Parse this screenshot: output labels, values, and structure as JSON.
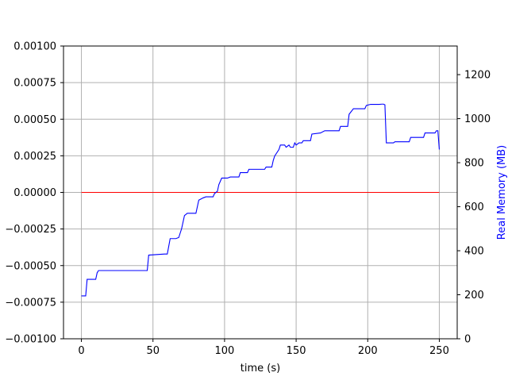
{
  "chart_data": {
    "type": "line",
    "title": "",
    "xlabel": "time (s)",
    "ylabel": "",
    "y2label": "Real Memory (MB)",
    "xlim": [
      -12.5,
      262.5
    ],
    "ylim": [
      -0.001,
      0.001
    ],
    "y2lim": [
      0,
      1330
    ],
    "x_ticks": [
      0,
      50,
      100,
      150,
      200,
      250
    ],
    "x_tick_labels": [
      "0",
      "50",
      "100",
      "150",
      "200",
      "250"
    ],
    "y_ticks": [
      -0.001,
      -0.00075,
      -0.0005,
      -0.00025,
      0,
      0.00025,
      0.0005,
      0.00075,
      0.001
    ],
    "y_tick_labels": [
      "−0.00100",
      "−0.00075",
      "−0.00050",
      "−0.00025",
      "0.00000",
      "0.00025",
      "0.00050",
      "0.00075",
      "0.00100"
    ],
    "y2_ticks": [
      0,
      200,
      400,
      600,
      800,
      1000,
      1200
    ],
    "y2_tick_labels": [
      "0",
      "200",
      "400",
      "600",
      "800",
      "1000",
      "1200"
    ],
    "grid": true,
    "legend": "none",
    "colors": {
      "baseline": "#ff0000",
      "memory": "#0000ff",
      "grid": "#b0b0b0",
      "y2label": "#0000ff"
    },
    "series": [
      {
        "axis": "left",
        "color": "#ff0000",
        "points": [
          [
            0,
            0
          ],
          [
            250,
            0
          ]
        ]
      },
      {
        "axis": "right",
        "color": "#0000ff",
        "points": [
          [
            0,
            195
          ],
          [
            3,
            195
          ],
          [
            4,
            270
          ],
          [
            10,
            270
          ],
          [
            11,
            300
          ],
          [
            12,
            310
          ],
          [
            46,
            310
          ],
          [
            47,
            380
          ],
          [
            58,
            385
          ],
          [
            60,
            385
          ],
          [
            61,
            420
          ],
          [
            62,
            455
          ],
          [
            66,
            455
          ],
          [
            68,
            460
          ],
          [
            70,
            500
          ],
          [
            72,
            560
          ],
          [
            74,
            570
          ],
          [
            80,
            570
          ],
          [
            82,
            630
          ],
          [
            85,
            640
          ],
          [
            87,
            645
          ],
          [
            92,
            645
          ],
          [
            93,
            660
          ],
          [
            95,
            670
          ],
          [
            96,
            700
          ],
          [
            98,
            730
          ],
          [
            102,
            730
          ],
          [
            104,
            735
          ],
          [
            110,
            735
          ],
          [
            111,
            755
          ],
          [
            116,
            755
          ],
          [
            117,
            770
          ],
          [
            128,
            770
          ],
          [
            129,
            780
          ],
          [
            133,
            780
          ],
          [
            134,
            810
          ],
          [
            135,
            830
          ],
          [
            138,
            860
          ],
          [
            139,
            880
          ],
          [
            142,
            880
          ],
          [
            143,
            870
          ],
          [
            145,
            880
          ],
          [
            146,
            870
          ],
          [
            148,
            870
          ],
          [
            149,
            890
          ],
          [
            150,
            880
          ],
          [
            152,
            890
          ],
          [
            154,
            890
          ],
          [
            155,
            900
          ],
          [
            160,
            900
          ],
          [
            161,
            930
          ],
          [
            167,
            935
          ],
          [
            170,
            945
          ],
          [
            180,
            945
          ],
          [
            181,
            965
          ],
          [
            186,
            965
          ],
          [
            187,
            1020
          ],
          [
            190,
            1045
          ],
          [
            198,
            1045
          ],
          [
            199,
            1060
          ],
          [
            202,
            1065
          ],
          [
            208,
            1065
          ],
          [
            210,
            1066
          ],
          [
            211,
            1066
          ],
          [
            212,
            1063
          ],
          [
            213,
            890
          ],
          [
            218,
            890
          ],
          [
            219,
            895
          ],
          [
            229,
            895
          ],
          [
            230,
            915
          ],
          [
            239,
            915
          ],
          [
            240,
            935
          ],
          [
            247,
            935
          ],
          [
            248,
            945
          ],
          [
            249,
            945
          ],
          [
            250,
            860
          ]
        ]
      }
    ]
  }
}
